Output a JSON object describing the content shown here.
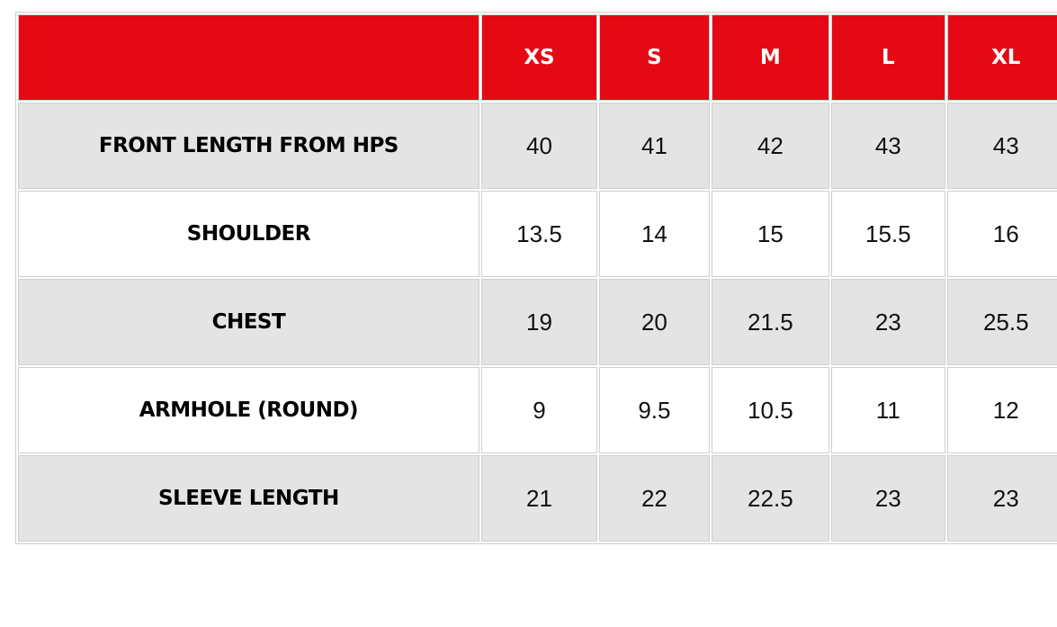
{
  "header": {
    "corner": "",
    "sizes": [
      "XS",
      "S",
      "M",
      "L",
      "XL"
    ]
  },
  "rows": [
    {
      "label": "FRONT LENGTH FROM HPS",
      "values": [
        "40",
        "41",
        "42",
        "43",
        "43"
      ]
    },
    {
      "label": "SHOULDER",
      "values": [
        "13.5",
        "14",
        "15",
        "15.5",
        "16"
      ]
    },
    {
      "label": "CHEST",
      "values": [
        "19",
        "20",
        "21.5",
        "23",
        "25.5"
      ]
    },
    {
      "label": "ARMHOLE (ROUND)",
      "values": [
        "9",
        "9.5",
        "10.5",
        "11",
        "12"
      ]
    },
    {
      "label": "SLEEVE LENGTH",
      "values": [
        "21",
        "22",
        "22.5",
        "23",
        "23"
      ]
    }
  ],
  "colors": {
    "header_bg": "#e50914",
    "header_text": "#ffffff",
    "shaded_row": "#e4e4e4",
    "border": "#cfcfcf"
  }
}
